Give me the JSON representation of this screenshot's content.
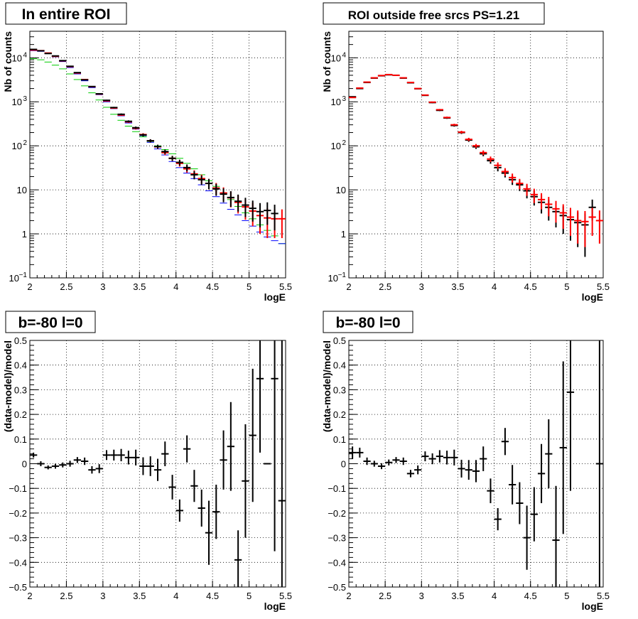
{
  "chart_data": [
    {
      "type": "scatter",
      "title": "In entire ROI",
      "xlabel": "logE",
      "ylabel": "Nb of counts",
      "xlim": [
        2,
        5.5
      ],
      "ylim": [
        0.1,
        40000
      ],
      "yscale": "log",
      "grid": true,
      "xticks": [
        "2",
        "2.5",
        "3",
        "3.5",
        "4",
        "4.5",
        "5",
        "5.5"
      ],
      "yticks": [
        {
          "value": 0.1,
          "label": "10",
          "sup": "−1"
        },
        {
          "value": 1,
          "label": "1",
          "sup": ""
        },
        {
          "value": 10,
          "label": "10",
          "sup": ""
        },
        {
          "value": 100,
          "label": "10",
          "sup": "2"
        },
        {
          "value": 1000,
          "label": "10",
          "sup": "3"
        },
        {
          "value": 10000,
          "label": "10",
          "sup": "4"
        }
      ],
      "series": [
        {
          "color": "#00cc00",
          "marker": "hline",
          "x": [
            2.05,
            2.15,
            2.25,
            2.35,
            2.45,
            2.55,
            2.65,
            2.75,
            2.85,
            2.95,
            3.05,
            3.15,
            3.25,
            3.35,
            3.45,
            3.55,
            3.65,
            3.75,
            3.85,
            3.95,
            4.05,
            4.15,
            4.25,
            4.35,
            4.45,
            4.55,
            4.65,
            4.75,
            4.85,
            4.95,
            5.05,
            5.15,
            5.25,
            5.35,
            5.45
          ],
          "y": [
            9500,
            9000,
            8000,
            6800,
            5600,
            4300,
            3200,
            2300,
            1600,
            1100,
            750,
            520,
            380,
            280,
            210,
            160,
            125,
            100,
            82,
            66,
            52,
            40,
            30,
            22,
            16,
            12,
            8.5,
            6,
            4.2,
            3,
            2.2,
            1.6,
            1.2,
            0.9,
            0.6
          ]
        },
        {
          "color": "#0000ff",
          "marker": "hline",
          "x": [
            2.05,
            2.15,
            2.25,
            2.35,
            2.45,
            2.55,
            2.65,
            2.75,
            2.85,
            2.95,
            3.05,
            3.15,
            3.25,
            3.35,
            3.45,
            3.55,
            3.65,
            3.75,
            3.85,
            3.95,
            4.05,
            4.15,
            4.25,
            4.35,
            4.45,
            4.55,
            4.65,
            4.75,
            4.85,
            4.95,
            5.05,
            5.15,
            5.25,
            5.35,
            5.45
          ],
          "y": [
            14500,
            14000,
            12500,
            10500,
            8200,
            6000,
            4300,
            3000,
            2100,
            1450,
            1000,
            700,
            480,
            330,
            240,
            170,
            120,
            85,
            62,
            44,
            32,
            24,
            18,
            13,
            9.5,
            7,
            5,
            3.6,
            2.7,
            2,
            1.5,
            1.1,
            0.85,
            0.7,
            0.6
          ]
        },
        {
          "color": "#ff0000",
          "marker": "cross",
          "x": [
            2.05,
            2.15,
            2.25,
            2.35,
            2.45,
            2.55,
            2.65,
            2.75,
            2.85,
            2.95,
            3.05,
            3.15,
            3.25,
            3.35,
            3.45,
            3.55,
            3.65,
            3.75,
            3.85,
            3.95,
            4.05,
            4.15,
            4.25,
            4.35,
            4.45,
            4.55,
            4.65,
            4.75,
            4.85,
            4.95,
            5.05,
            5.15,
            5.25,
            5.35,
            5.45
          ],
          "y": [
            15000,
            14500,
            12800,
            10800,
            8500,
            6300,
            4500,
            3200,
            2200,
            1500,
            1050,
            720,
            500,
            350,
            250,
            180,
            130,
            95,
            70,
            52,
            40,
            30,
            23,
            18,
            14,
            11,
            8.5,
            6.6,
            5.2,
            4.1,
            3.3,
            2.6,
            2.3,
            2.2,
            2.2
          ],
          "err": [
            122,
            120,
            113,
            104,
            92,
            79,
            67,
            57,
            47,
            39,
            32,
            27,
            22,
            19,
            16,
            13,
            11,
            10,
            8.4,
            7.2,
            6.3,
            5.5,
            4.8,
            4.2,
            3.7,
            3.3,
            2.9,
            2.6,
            2.3,
            2,
            1.8,
            1.6,
            1.5,
            1.4,
            1.4
          ]
        },
        {
          "color": "#000000",
          "marker": "cross",
          "x": [
            2.05,
            2.15,
            2.25,
            2.35,
            2.45,
            2.55,
            2.65,
            2.75,
            2.85,
            2.95,
            3.05,
            3.15,
            3.25,
            3.35,
            3.45,
            3.55,
            3.65,
            3.75,
            3.85,
            3.95,
            4.05,
            4.15,
            4.25,
            4.35,
            4.45,
            4.55,
            4.65,
            4.75,
            4.85,
            4.95,
            5.05,
            5.15,
            5.25,
            5.35
          ],
          "y": [
            15500,
            14400,
            12500,
            11000,
            8600,
            6400,
            4600,
            3150,
            2220,
            1520,
            1080,
            740,
            520,
            360,
            258,
            176,
            130,
            96,
            74,
            52,
            42,
            32,
            22,
            17,
            14,
            10.5,
            8,
            6.7,
            5.5,
            4.5,
            3.8,
            3.2,
            3.4,
            2.9
          ],
          "err": [
            124,
            120,
            112,
            105,
            93,
            80,
            68,
            56,
            47,
            39,
            33,
            27,
            23,
            19,
            16,
            13,
            11,
            10,
            8.6,
            7.2,
            6.5,
            5.7,
            4.7,
            4.1,
            3.7,
            3.2,
            2.8,
            2.6,
            2.3,
            2.1,
            1.9,
            1.8,
            1.8,
            1.7
          ]
        }
      ]
    },
    {
      "type": "scatter",
      "title": "ROI outside free srcs PS=1.21",
      "xlabel": "logE",
      "ylabel": "Nb of counts",
      "xlim": [
        2,
        5.5
      ],
      "ylim": [
        0.1,
        40000
      ],
      "yscale": "log",
      "grid": true,
      "xticks": [
        "2",
        "2.5",
        "3",
        "3.5",
        "4",
        "4.5",
        "5",
        "5.5"
      ],
      "yticks": [
        {
          "value": 0.1,
          "label": "10",
          "sup": "−1"
        },
        {
          "value": 1,
          "label": "1",
          "sup": ""
        },
        {
          "value": 10,
          "label": "10",
          "sup": ""
        },
        {
          "value": 100,
          "label": "10",
          "sup": "2"
        },
        {
          "value": 1000,
          "label": "10",
          "sup": "3"
        },
        {
          "value": 10000,
          "label": "10",
          "sup": "4"
        }
      ],
      "series": [
        {
          "color": "#000000",
          "marker": "cross",
          "x": [
            2.05,
            2.15,
            2.25,
            2.35,
            2.45,
            2.55,
            2.65,
            2.75,
            2.85,
            2.95,
            3.05,
            3.15,
            3.25,
            3.35,
            3.45,
            3.55,
            3.65,
            3.75,
            3.85,
            3.95,
            4.05,
            4.15,
            4.25,
            4.35,
            4.45,
            4.55,
            4.65,
            4.75,
            4.85,
            4.95,
            5.05,
            5.15,
            5.25,
            5.35
          ],
          "y": [
            1300,
            2000,
            2750,
            3450,
            3900,
            4100,
            4000,
            3450,
            2700,
            1980,
            1400,
            960,
            640,
            430,
            290,
            200,
            135,
            95,
            66,
            46,
            32,
            24,
            17,
            13,
            9.5,
            7,
            5.2,
            4,
            3.2,
            2.6,
            2.1,
            1.8,
            1.6,
            4
          ],
          "err": [
            36,
            45,
            52,
            59,
            62,
            64,
            63,
            59,
            52,
            44,
            37,
            31,
            25,
            21,
            17,
            14,
            12,
            10,
            8.1,
            6.8,
            5.7,
            4.9,
            4.1,
            3.6,
            3.1,
            2.6,
            2.3,
            2,
            1.8,
            1.6,
            1.4,
            1.3,
            1.3,
            2
          ]
        },
        {
          "color": "#ff0000",
          "marker": "cross",
          "x": [
            2.05,
            2.15,
            2.25,
            2.35,
            2.45,
            2.55,
            2.65,
            2.75,
            2.85,
            2.95,
            3.05,
            3.15,
            3.25,
            3.35,
            3.45,
            3.55,
            3.65,
            3.75,
            3.85,
            3.95,
            4.05,
            4.15,
            4.25,
            4.35,
            4.45,
            4.55,
            4.65,
            4.75,
            4.85,
            4.95,
            5.05,
            5.15,
            5.25,
            5.35,
            5.45
          ],
          "y": [
            1250,
            2050,
            2800,
            3500,
            3950,
            4150,
            4000,
            3500,
            2750,
            2000,
            1420,
            980,
            660,
            440,
            300,
            205,
            140,
            100,
            70,
            50,
            36,
            26,
            19,
            14,
            10.5,
            7.8,
            6,
            4.7,
            3.7,
            3,
            2.4,
            2,
            1.9,
            2.4,
            2
          ],
          "err": [
            35,
            45,
            53,
            59,
            63,
            64,
            63,
            59,
            52,
            45,
            38,
            31,
            26,
            21,
            17,
            14,
            12,
            10,
            8.4,
            7.1,
            6,
            5.1,
            4.4,
            3.7,
            3.2,
            2.8,
            2.4,
            2.2,
            1.9,
            1.7,
            1.5,
            1.4,
            1.4,
            1.5,
            1.4
          ]
        }
      ]
    },
    {
      "type": "scatter",
      "title": "b=-80 l=0",
      "xlabel": "logE",
      "ylabel": "(data-model)/model",
      "xlim": [
        2,
        5.5
      ],
      "ylim": [
        -0.5,
        0.5
      ],
      "grid": true,
      "xticks": [
        "2",
        "2.5",
        "3",
        "3.5",
        "4",
        "4.5",
        "5",
        "5.5"
      ],
      "yticks": [
        "−0.5",
        "−0.4",
        "−0.3",
        "−0.2",
        "−0.1",
        "0",
        "0.1",
        "0.2",
        "0.3",
        "0.4",
        "0.5"
      ],
      "series": [
        {
          "color": "#000000",
          "marker": "cross",
          "x": [
            2.05,
            2.15,
            2.25,
            2.35,
            2.45,
            2.55,
            2.65,
            2.75,
            2.85,
            2.95,
            3.05,
            3.15,
            3.25,
            3.35,
            3.45,
            3.55,
            3.65,
            3.75,
            3.85,
            3.95,
            4.05,
            4.15,
            4.25,
            4.35,
            4.45,
            4.55,
            4.65,
            4.75,
            4.85,
            4.95,
            5.05,
            5.15,
            5.25,
            5.35,
            5.45
          ],
          "y": [
            0.035,
            0.0,
            -0.015,
            -0.01,
            -0.005,
            0.0,
            0.015,
            0.01,
            -0.025,
            -0.02,
            0.035,
            0.035,
            0.035,
            0.025,
            0.025,
            -0.01,
            -0.01,
            -0.025,
            0.04,
            -0.095,
            -0.19,
            0.06,
            -0.09,
            -0.18,
            -0.28,
            -0.195,
            0.015,
            0.07,
            -0.39,
            -0.07,
            0.115,
            0.345,
            0.0,
            0.345,
            -0.15
          ],
          "err": [
            0.01,
            0.01,
            0.008,
            0.01,
            0.01,
            0.012,
            0.012,
            0.015,
            0.015,
            0.018,
            0.02,
            0.022,
            0.025,
            0.028,
            0.032,
            0.036,
            0.04,
            0.045,
            0.05,
            0.05,
            0.045,
            0.055,
            0.065,
            0.075,
            0.13,
            0.11,
            0.12,
            0.18,
            0.12,
            0.23,
            0.27,
            0.3,
            0,
            0.7,
            0.65
          ]
        }
      ]
    },
    {
      "type": "scatter",
      "title": "b=-80 l=0",
      "xlabel": "logE",
      "ylabel": "(data-model)/model",
      "xlim": [
        2,
        5.5
      ],
      "ylim": [
        -0.5,
        0.5
      ],
      "grid": true,
      "xticks": [
        "2",
        "2.5",
        "3",
        "3.5",
        "4",
        "4.5",
        "5",
        "5.5"
      ],
      "yticks": [
        "−0.5",
        "−0.4",
        "−0.3",
        "−0.2",
        "−0.1",
        "0",
        "0.1",
        "0.2",
        "0.3",
        "0.4",
        "0.5"
      ],
      "series": [
        {
          "color": "#000000",
          "marker": "cross",
          "x": [
            2.05,
            2.15,
            2.25,
            2.35,
            2.45,
            2.55,
            2.65,
            2.75,
            2.85,
            2.95,
            3.05,
            3.15,
            3.25,
            3.35,
            3.45,
            3.55,
            3.65,
            3.75,
            3.85,
            3.95,
            4.05,
            4.15,
            4.25,
            4.35,
            4.45,
            4.55,
            4.65,
            4.75,
            4.85,
            4.95,
            5.05,
            5.45
          ],
          "y": [
            0.045,
            0.045,
            0.01,
            0.0,
            -0.01,
            0.005,
            0.015,
            0.01,
            -0.04,
            -0.025,
            0.03,
            0.02,
            0.03,
            0.025,
            0.025,
            -0.02,
            -0.025,
            -0.03,
            0.02,
            -0.11,
            -0.225,
            0.09,
            -0.085,
            -0.16,
            -0.3,
            -0.205,
            -0.04,
            0.04,
            -0.31,
            0.065,
            0.29,
            0.0
          ],
          "err": [
            0.025,
            0.02,
            0.015,
            0.012,
            0.012,
            0.012,
            0.012,
            0.015,
            0.015,
            0.018,
            0.02,
            0.022,
            0.025,
            0.028,
            0.032,
            0.036,
            0.04,
            0.045,
            0.05,
            0.05,
            0.045,
            0.055,
            0.08,
            0.085,
            0.13,
            0.11,
            0.12,
            0.14,
            0.22,
            0.35,
            0.4,
            0.6
          ]
        }
      ]
    }
  ]
}
